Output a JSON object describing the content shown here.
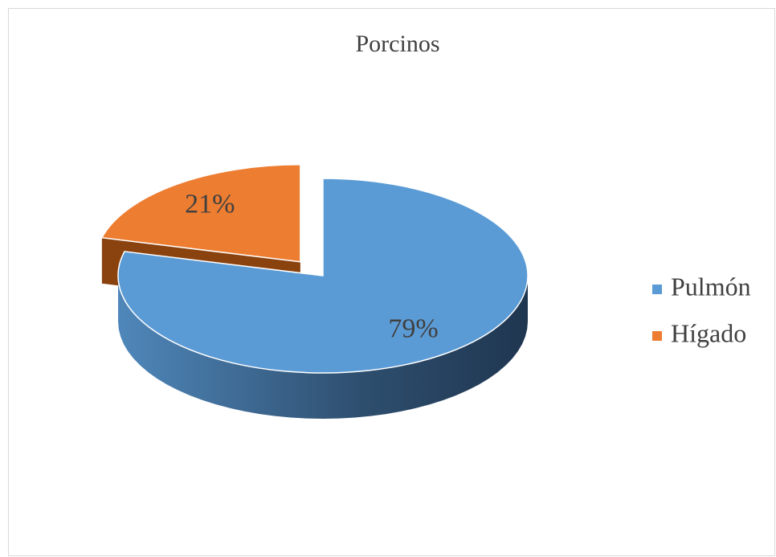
{
  "chart_data": {
    "type": "pie",
    "title": "Porcinos",
    "categories": [
      "Pulmón",
      "Hígado"
    ],
    "values": [
      79,
      21
    ],
    "value_labels": [
      "79%",
      "21%"
    ],
    "colors": [
      "#5b9bd5",
      "#ed7d31"
    ],
    "legend": "right"
  }
}
